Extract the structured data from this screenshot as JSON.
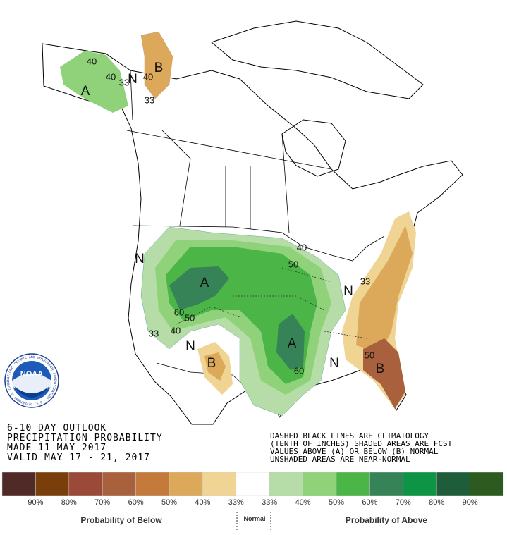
{
  "map_labels": [
    "40",
    "40",
    "33",
    "A",
    "N",
    "40",
    "B",
    "33",
    "N",
    "A",
    "60",
    "50",
    "40",
    "33",
    "N",
    "B",
    "40",
    "50",
    "33",
    "N",
    "A",
    "60",
    "N",
    "50",
    "B"
  ],
  "logo": {
    "name": "NOAA",
    "ring": "NATIONAL OCEANIC AND ATMOSPHERIC ADMINISTRATION · U.S. DEPARTMENT OF COMMERCE"
  },
  "info": [
    "6-10 DAY OUTLOOK",
    "PRECIPITATION PROBABILITY",
    "MADE   11 MAY 2017",
    "VALID   MAY 17 - 21, 2017"
  ],
  "note": [
    "DASHED BLACK LINES ARE CLIMATOLOGY",
    "(TENTH OF INCHES) SHADED AREAS ARE FCST",
    "VALUES ABOVE (A) OR BELOW (B) NORMAL",
    "UNSHADED AREAS ARE NEAR-NORMAL"
  ],
  "legend": {
    "colors": [
      "#4f2a26",
      "#7a3e0a",
      "#9b4a3a",
      "#a9603c",
      "#c47a3a",
      "#dca85a",
      "#f0d494",
      "#ffffff",
      "#b6dca7",
      "#8fd27a",
      "#4cb548",
      "#368358",
      "#0d9444",
      "#1f5c3a",
      "#2d5a1e"
    ],
    "labels": [
      "90%",
      "80%",
      "70%",
      "60%",
      "50%",
      "40%",
      "33%",
      "33%",
      "40%",
      "50%",
      "60%",
      "70%",
      "80%",
      "90%"
    ],
    "below": "Probability of Below",
    "normal": "Normal",
    "above": "Probability of Above"
  }
}
